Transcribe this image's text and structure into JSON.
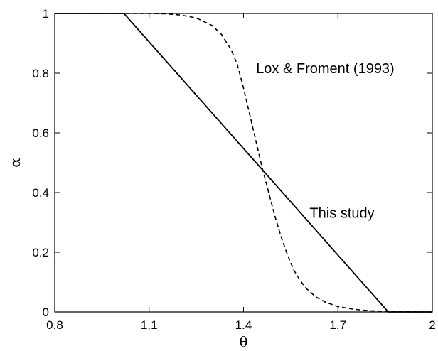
{
  "chart_data": {
    "type": "line",
    "xlabel": "θ",
    "ylabel": "α",
    "xlim": [
      0.8,
      2.0
    ],
    "ylim": [
      0,
      1
    ],
    "xticks": [
      "0.8",
      "1.1",
      "1.4",
      "1.7",
      "2"
    ],
    "yticks": [
      "0",
      "0.2",
      "0.4",
      "0.6",
      "0.8",
      "1"
    ],
    "grid": false,
    "series": [
      {
        "style": "solid",
        "color": "#000000",
        "x": [
          0.8,
          1.02,
          1.86,
          2.0
        ],
        "y": [
          1.0,
          1.0,
          0.0,
          0.0
        ]
      },
      {
        "style": "dashed",
        "color": "#000000",
        "x": [
          0.8,
          0.9,
          1.0,
          1.1,
          1.15,
          1.2,
          1.25,
          1.3,
          1.33,
          1.36,
          1.38,
          1.4,
          1.42,
          1.44,
          1.46,
          1.48,
          1.5,
          1.52,
          1.54,
          1.56,
          1.58,
          1.6,
          1.63,
          1.66,
          1.7,
          1.75,
          1.8,
          1.85,
          1.9,
          2.0
        ],
        "y": [
          1.0,
          1.0,
          1.0,
          1.0,
          0.999,
          0.995,
          0.985,
          0.96,
          0.93,
          0.88,
          0.83,
          0.75,
          0.66,
          0.57,
          0.48,
          0.4,
          0.32,
          0.25,
          0.19,
          0.14,
          0.105,
          0.078,
          0.05,
          0.033,
          0.018,
          0.009,
          0.004,
          0.002,
          0.0007,
          0.0
        ]
      }
    ],
    "annotations": [
      {
        "text": "Lox & Froment (1993)",
        "x": 1.44,
        "y": 0.8
      },
      {
        "text": "This study",
        "x": 1.61,
        "y": 0.315
      }
    ]
  }
}
